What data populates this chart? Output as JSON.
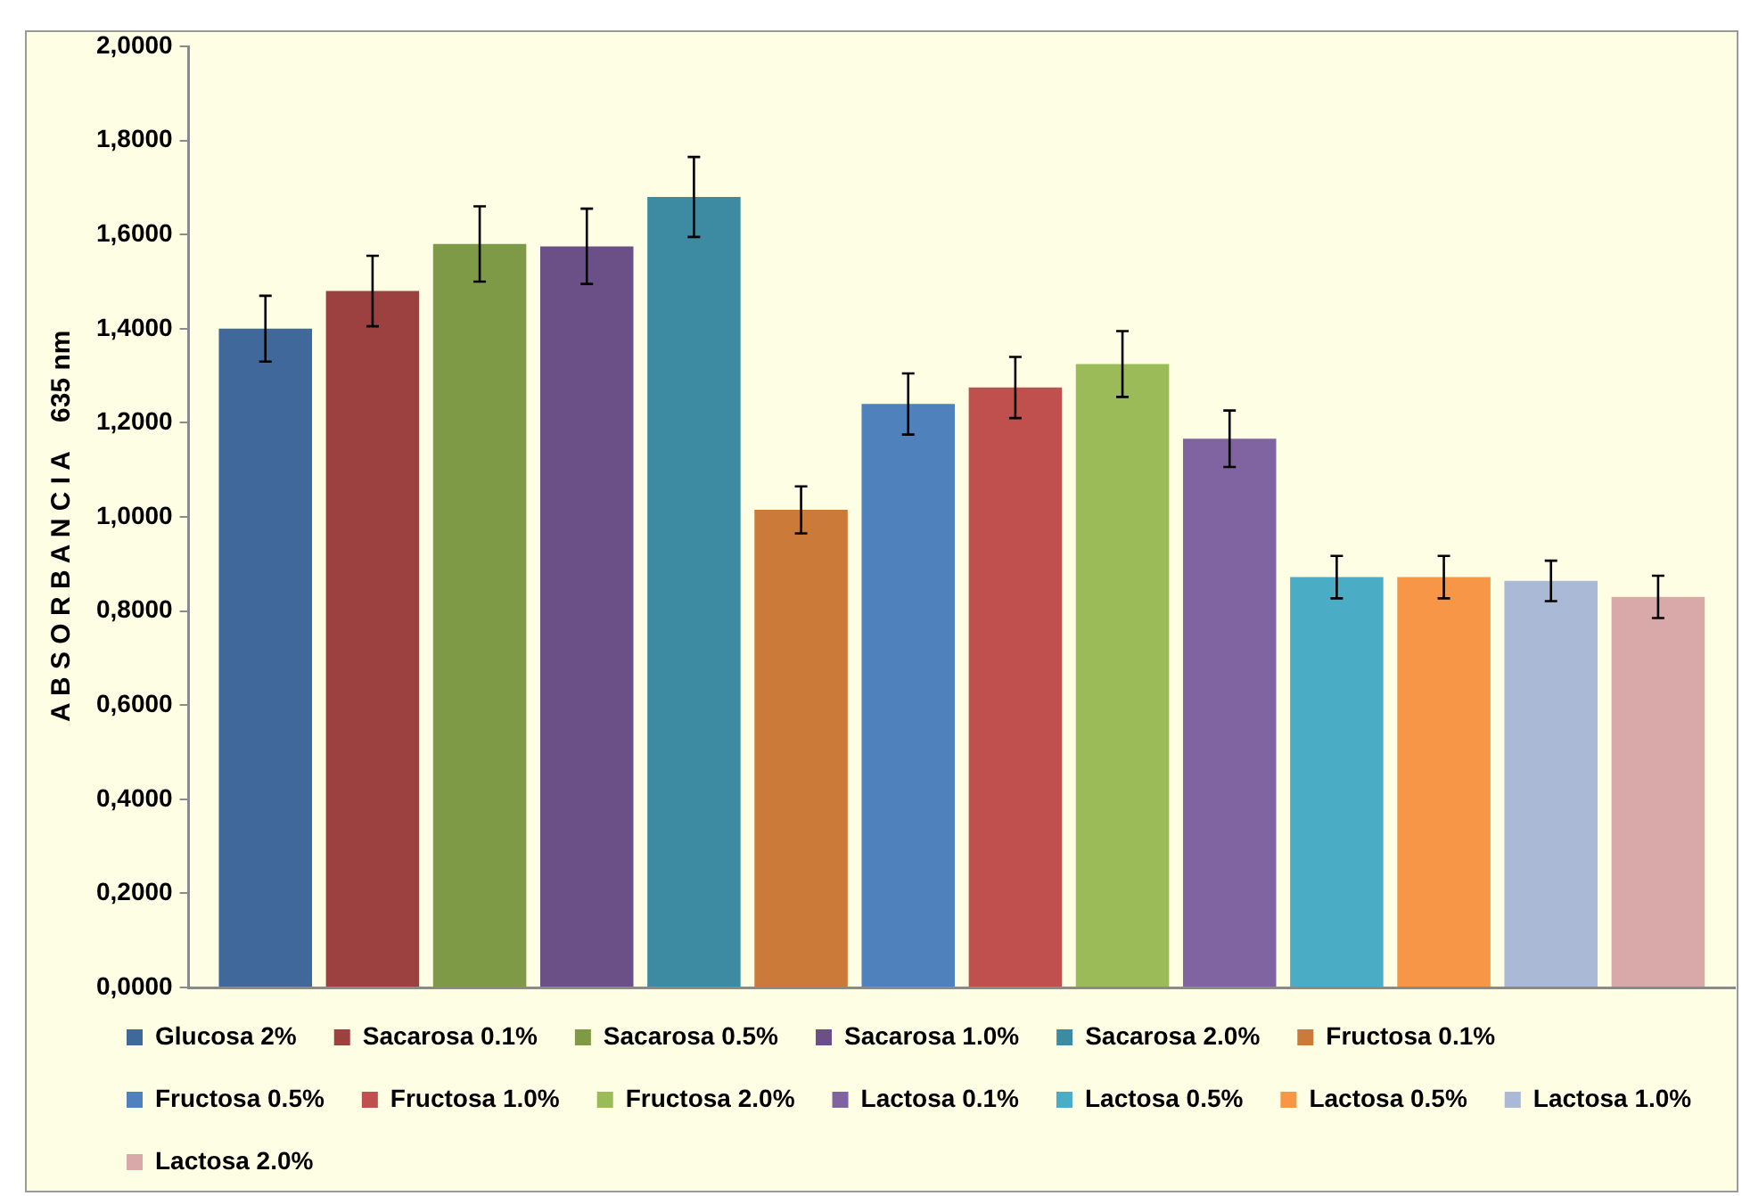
{
  "chart_data": {
    "type": "bar",
    "ylabel": "A B S O R B A N C I A    635 nm",
    "categories": [
      null
    ],
    "ylim": [
      0,
      2
    ],
    "yticks": [
      {
        "value": 0,
        "label": "0,0000"
      },
      {
        "value": 0.2,
        "label": "0,2000"
      },
      {
        "value": 0.4,
        "label": "0,4000"
      },
      {
        "value": 0.6,
        "label": "0,6000"
      },
      {
        "value": 0.8,
        "label": "0,8000"
      },
      {
        "value": 1,
        "label": "1,0000"
      },
      {
        "value": 1.2,
        "label": "1,2000"
      },
      {
        "value": 1.4,
        "label": "1,4000"
      },
      {
        "value": 1.6,
        "label": "1,6000"
      },
      {
        "value": 1.8,
        "label": "1,8000"
      },
      {
        "value": 2,
        "label": "2,0000"
      }
    ],
    "grid": false,
    "legend": "bottom",
    "tick_labels": "y",
    "series": [
      {
        "name": "Glucosa 2%",
        "color": "#41689b",
        "values": [
          1.4
        ],
        "errors": [
          0.07
        ]
      },
      {
        "name": "Sacarosa 0.1%",
        "color": "#9d4040",
        "values": [
          1.48
        ],
        "errors": [
          0.075
        ]
      },
      {
        "name": "Sacarosa 0.5%",
        "color": "#7f9a47",
        "values": [
          1.58
        ],
        "errors": [
          0.08
        ]
      },
      {
        "name": "Sacarosa 1.0%",
        "color": "#6a5087",
        "values": [
          1.575
        ],
        "errors": [
          0.08
        ]
      },
      {
        "name": "Sacarosa 2.0%",
        "color": "#3c8ba3",
        "values": [
          1.68
        ],
        "errors": [
          0.085
        ]
      },
      {
        "name": "Fructosa 0.1%",
        "color": "#cc7a39",
        "values": [
          1.015
        ],
        "errors": [
          0.05
        ]
      },
      {
        "name": "Fructosa 0.5%",
        "color": "#4f81bd",
        "values": [
          1.24
        ],
        "errors": [
          0.065
        ]
      },
      {
        "name": "Fructosa 1.0%",
        "color": "#c0504d",
        "values": [
          1.275
        ],
        "errors": [
          0.065
        ]
      },
      {
        "name": "Fructosa 2.0%",
        "color": "#9bbb59",
        "values": [
          1.325
        ],
        "errors": [
          0.07
        ]
      },
      {
        "name": "Lactosa 0.1%",
        "color": "#8064a2",
        "values": [
          1.166
        ],
        "errors": [
          0.06
        ]
      },
      {
        "name": "Lactosa 0.5%",
        "color": "#4bacc6",
        "values": [
          0.872
        ],
        "errors": [
          0.045
        ]
      },
      {
        "name": "Lactosa 0.5%",
        "color": "#f79646",
        "values": [
          0.872
        ],
        "errors": [
          0.045
        ]
      },
      {
        "name": "Lactosa 1.0%",
        "color": "#aab9d6",
        "values": [
          0.864
        ],
        "errors": [
          0.043
        ]
      },
      {
        "name": "Lactosa 2.0%",
        "color": "#d9a9a9",
        "values": [
          0.83
        ],
        "errors": [
          0.045
        ]
      }
    ]
  }
}
